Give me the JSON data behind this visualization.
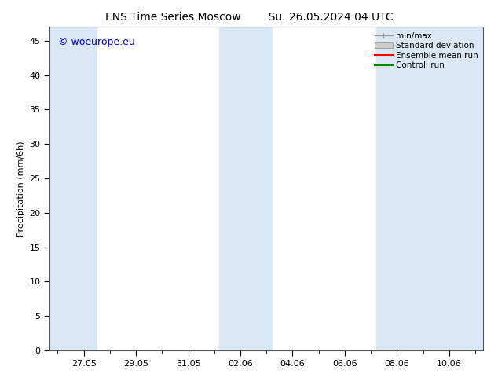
{
  "title_left": "ENS Time Series Moscow",
  "title_right": "Su. 26.05.2024 04 UTC",
  "ylabel": "Precipitation (mm/6h)",
  "ylim": [
    0,
    47
  ],
  "yticks": [
    0,
    5,
    10,
    15,
    20,
    25,
    30,
    35,
    40,
    45
  ],
  "xtick_labels": [
    "27.05",
    "29.05",
    "31.05",
    "02.06",
    "04.06",
    "06.06",
    "08.06",
    "10.06"
  ],
  "xtick_positions": [
    1,
    3,
    5,
    7,
    9,
    11,
    13,
    15
  ],
  "x_min": -0.3,
  "x_max": 16.3,
  "shaded_bands": [
    {
      "x_start": -0.3,
      "x_end": 1.5
    },
    {
      "x_start": 6.2,
      "x_end": 8.2
    },
    {
      "x_start": 12.2,
      "x_end": 16.3
    }
  ],
  "shaded_color": "#dae8f5",
  "watermark_text": "© woeurope.eu",
  "watermark_color": "#0000cc",
  "bg_color": "#ffffff",
  "plot_bg_color": "#ffffff",
  "title_fontsize": 10,
  "axis_fontsize": 8,
  "tick_fontsize": 8,
  "legend_fontsize": 7.5,
  "minmax_color": "#999999",
  "std_facecolor": "#cccccc",
  "std_edgecolor": "#999999",
  "ens_color": "#ff0000",
  "ctrl_color": "#008800"
}
